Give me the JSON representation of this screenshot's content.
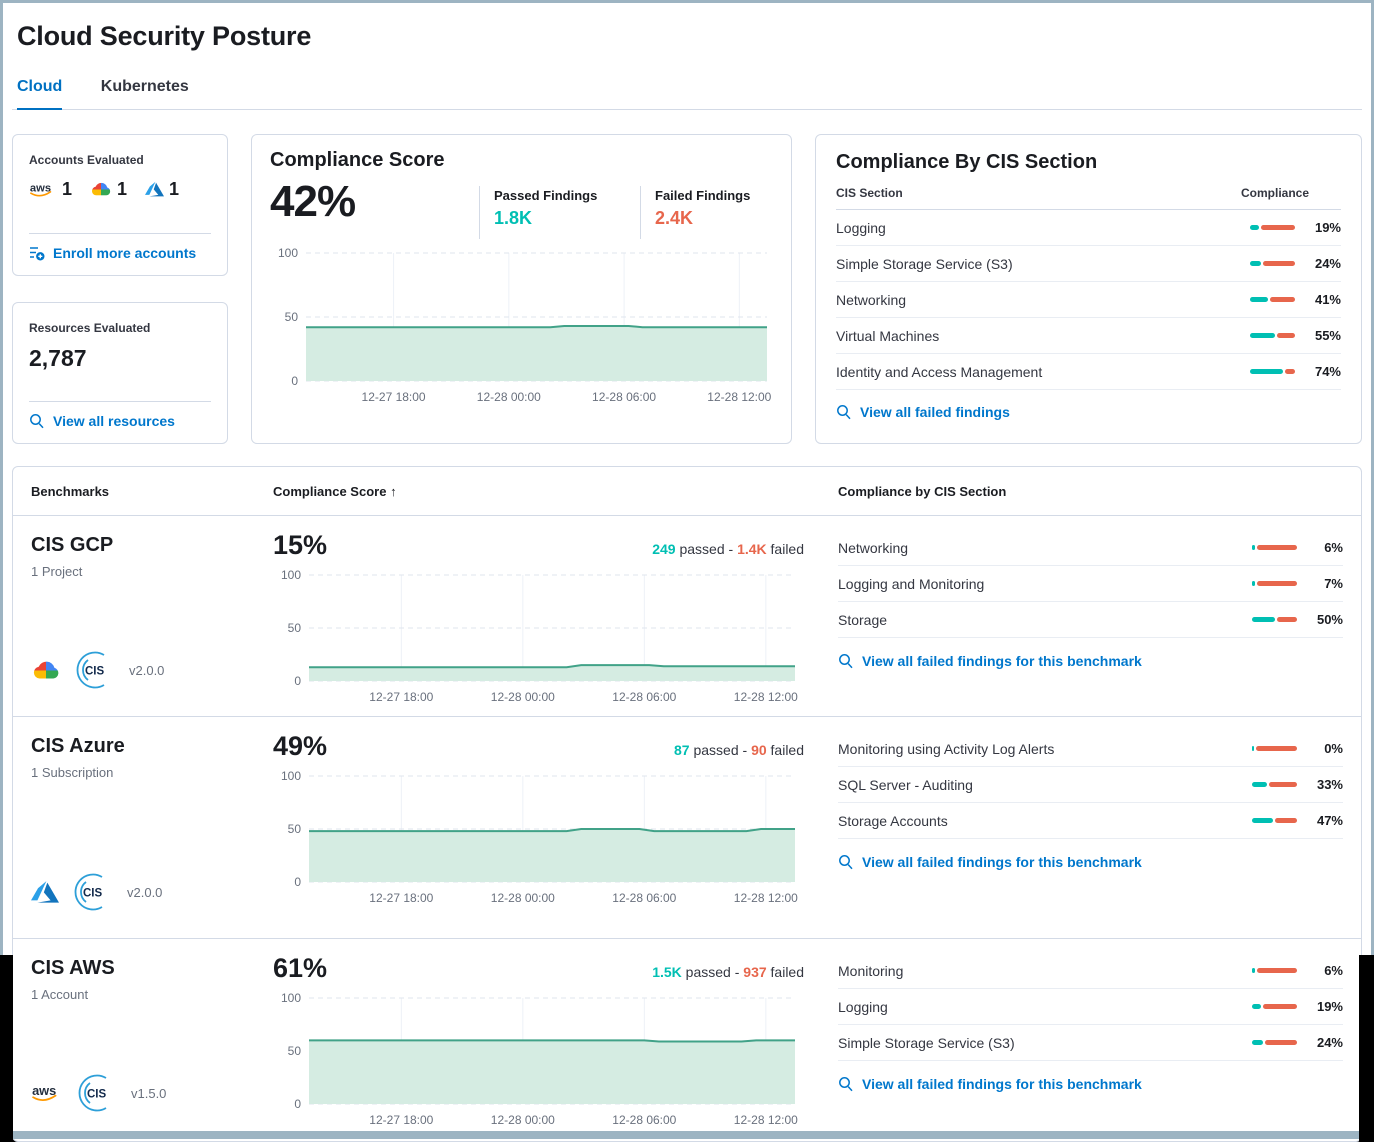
{
  "colors": {
    "accent_teal": "#00BFB3",
    "accent_red": "#E7664C",
    "link_blue": "#0077CC",
    "tab_blue": "#0071C2",
    "chart_line": "#41A288",
    "chart_fill": "#D5ECE2"
  },
  "page": {
    "title": "Cloud Security Posture"
  },
  "tabs": {
    "cloud": "Cloud",
    "kubernetes": "Kubernetes"
  },
  "accounts_card": {
    "title": "Accounts Evaluated",
    "aws_count": "1",
    "gcp_count": "1",
    "azure_count": "1",
    "enroll_link": "Enroll more accounts"
  },
  "resources_card": {
    "title": "Resources Evaluated",
    "value": "2,787",
    "link": "View all resources"
  },
  "score_card": {
    "title": "Compliance Score",
    "score": "42%",
    "passed_label": "Passed Findings",
    "passed_value": "1.8K",
    "failed_label": "Failed Findings",
    "failed_value": "2.4K"
  },
  "cis_card": {
    "title": "Compliance By CIS Section",
    "col_section": "CIS Section",
    "col_compliance": "Compliance",
    "link": "View all failed findings",
    "rows": [
      {
        "label": "Logging",
        "pct": 19,
        "pct_label": "19%"
      },
      {
        "label": "Simple Storage Service (S3)",
        "pct": 24,
        "pct_label": "24%"
      },
      {
        "label": "Networking",
        "pct": 41,
        "pct_label": "41%"
      },
      {
        "label": "Virtual Machines",
        "pct": 55,
        "pct_label": "55%"
      },
      {
        "label": "Identity and Access Management",
        "pct": 74,
        "pct_label": "74%"
      }
    ]
  },
  "benchmarks": {
    "col_benchmarks": "Benchmarks",
    "col_score": "Compliance Score",
    "sort_arrow": "↑",
    "col_sections": "Compliance by CIS Section",
    "rows": [
      {
        "name": "CIS GCP",
        "subtitle": "1 Project",
        "provider": "gcp-icon",
        "version": "v2.0.0",
        "score": "15%",
        "passed": "249",
        "passed_word": " passed - ",
        "failed": "1.4K",
        "failed_word": " failed",
        "link": "View all failed findings for this benchmark",
        "sections": [
          {
            "label": "Networking",
            "pct": 6,
            "pct_label": "6%"
          },
          {
            "label": "Logging and Monitoring",
            "pct": 7,
            "pct_label": "7%"
          },
          {
            "label": "Storage",
            "pct": 50,
            "pct_label": "50%"
          }
        ]
      },
      {
        "name": "CIS Azure",
        "subtitle": "1 Subscription",
        "provider": "azure-icon",
        "version": "v2.0.0",
        "score": "49%",
        "passed": "87",
        "passed_word": " passed - ",
        "failed": "90",
        "failed_word": " failed",
        "link": "View all failed findings for this benchmark",
        "sections": [
          {
            "label": "Monitoring using Activity Log Alerts",
            "pct": 0,
            "pct_label": "0%"
          },
          {
            "label": "SQL Server - Auditing",
            "pct": 33,
            "pct_label": "33%"
          },
          {
            "label": "Storage Accounts",
            "pct": 47,
            "pct_label": "47%"
          }
        ]
      },
      {
        "name": "CIS AWS",
        "subtitle": "1 Account",
        "provider": "aws-icon",
        "version": "v1.5.0",
        "score": "61%",
        "passed": "1.5K",
        "passed_word": " passed - ",
        "failed": "937",
        "failed_word": " failed",
        "link": "View all failed findings for this benchmark",
        "sections": [
          {
            "label": "Monitoring",
            "pct": 6,
            "pct_label": "6%"
          },
          {
            "label": "Logging",
            "pct": 19,
            "pct_label": "19%"
          },
          {
            "label": "Simple Storage Service (S3)",
            "pct": 24,
            "pct_label": "24%"
          }
        ]
      }
    ]
  },
  "chart_data": [
    {
      "id": "overall-compliance-trend",
      "type": "area",
      "title": "Compliance Score",
      "ylim": [
        0,
        100
      ],
      "yticks": [
        0,
        50,
        100
      ],
      "grid": true,
      "legend": false,
      "xticks": [
        "12-27 18:00",
        "12-28 00:00",
        "12-28 06:00",
        "12-28 12:00"
      ],
      "xtick_pos": [
        0.19,
        0.44,
        0.69,
        0.94
      ],
      "points": [
        [
          0,
          42
        ],
        [
          0.53,
          42
        ],
        [
          0.56,
          43
        ],
        [
          0.7,
          43
        ],
        [
          0.73,
          42
        ],
        [
          1,
          42
        ]
      ],
      "line_color": "#41A288",
      "fill_color": "#D5ECE2"
    },
    {
      "id": "cis-gcp-trend",
      "type": "area",
      "title": "CIS GCP Compliance Score",
      "ylim": [
        0,
        100
      ],
      "yticks": [
        0,
        50,
        100
      ],
      "grid": true,
      "legend": false,
      "xticks": [
        "12-27 18:00",
        "12-28 00:00",
        "12-28 06:00",
        "12-28 12:00"
      ],
      "xtick_pos": [
        0.19,
        0.44,
        0.69,
        0.94
      ],
      "points": [
        [
          0,
          13
        ],
        [
          0.53,
          13
        ],
        [
          0.56,
          15
        ],
        [
          0.7,
          15
        ],
        [
          0.73,
          14
        ],
        [
          1,
          14
        ]
      ],
      "line_color": "#41A288",
      "fill_color": "#D5ECE2"
    },
    {
      "id": "cis-azure-trend",
      "type": "area",
      "title": "CIS Azure Compliance Score",
      "ylim": [
        0,
        100
      ],
      "yticks": [
        0,
        50,
        100
      ],
      "grid": true,
      "legend": false,
      "xticks": [
        "12-27 18:00",
        "12-28 00:00",
        "12-28 06:00",
        "12-28 12:00"
      ],
      "xtick_pos": [
        0.19,
        0.44,
        0.69,
        0.94
      ],
      "points": [
        [
          0,
          48
        ],
        [
          0.53,
          48
        ],
        [
          0.56,
          50
        ],
        [
          0.68,
          50
        ],
        [
          0.71,
          48
        ],
        [
          0.9,
          48
        ],
        [
          0.93,
          50
        ],
        [
          1,
          50
        ]
      ],
      "line_color": "#41A288",
      "fill_color": "#D5ECE2"
    },
    {
      "id": "cis-aws-trend",
      "type": "area",
      "title": "CIS AWS Compliance Score",
      "ylim": [
        0,
        100
      ],
      "yticks": [
        0,
        50,
        100
      ],
      "grid": true,
      "legend": false,
      "xticks": [
        "12-27 18:00",
        "12-28 00:00",
        "12-28 06:00",
        "12-28 12:00"
      ],
      "xtick_pos": [
        0.19,
        0.44,
        0.69,
        0.94
      ],
      "points": [
        [
          0,
          60
        ],
        [
          0.69,
          60
        ],
        [
          0.72,
          59
        ],
        [
          0.89,
          59
        ],
        [
          0.92,
          60
        ],
        [
          1,
          60
        ]
      ],
      "line_color": "#41A288",
      "fill_color": "#D5ECE2"
    }
  ]
}
